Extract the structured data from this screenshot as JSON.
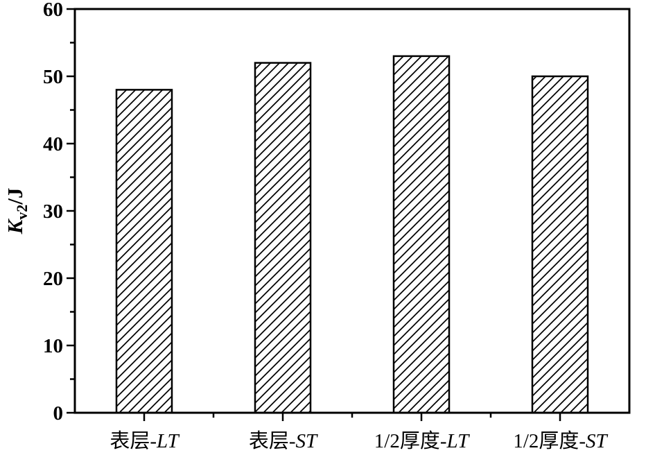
{
  "chart_data": {
    "type": "bar",
    "title": "",
    "xlabel": "",
    "ylabel": "K_v2/J",
    "ylabel_parts": {
      "italic_main": "K",
      "subscript": "v2",
      "rest": "/J"
    },
    "ylim": [
      0,
      60
    ],
    "ytick_major_step": 10,
    "ytick_minor_step": 5,
    "ytick_labels": [
      "0",
      "10",
      "20",
      "30",
      "40",
      "50",
      "60"
    ],
    "categories": [
      "表层-LT",
      "表层-ST",
      "1/2厚度-LT",
      "1/2厚度-ST"
    ],
    "categories_rich": [
      {
        "prefix": "表层-",
        "italic_suffix": "LT"
      },
      {
        "prefix": "表层-",
        "italic_suffix": "ST"
      },
      {
        "prefix": "1/2厚度-",
        "italic_suffix": "LT"
      },
      {
        "prefix": "1/2厚度-",
        "italic_suffix": "ST"
      }
    ],
    "values": [
      48,
      52,
      53,
      50
    ],
    "grid": false,
    "legend": "none",
    "style": {
      "background": "#ffffff",
      "axis_color": "#000000",
      "bar_fill": "#ffffff",
      "bar_border_color": "#000000",
      "hatch_pattern": "diagonal-forward-slash",
      "hatch_color": "#000000"
    }
  }
}
